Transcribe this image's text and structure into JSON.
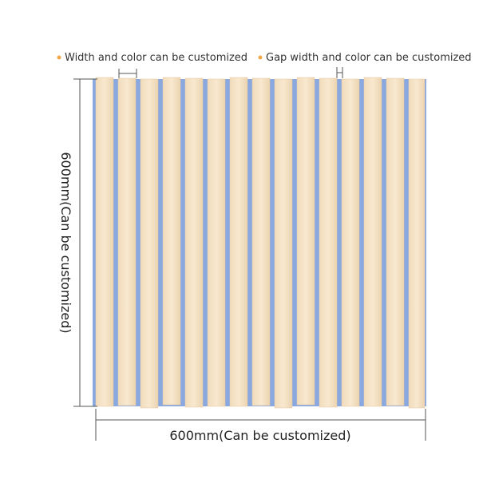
{
  "notes": {
    "width": "Width and color can be customized",
    "gap": "Gap width and color can be customized"
  },
  "dimensions": {
    "height": "600mm(Can be customized)",
    "width": "600mm(Can be customized)"
  }
}
